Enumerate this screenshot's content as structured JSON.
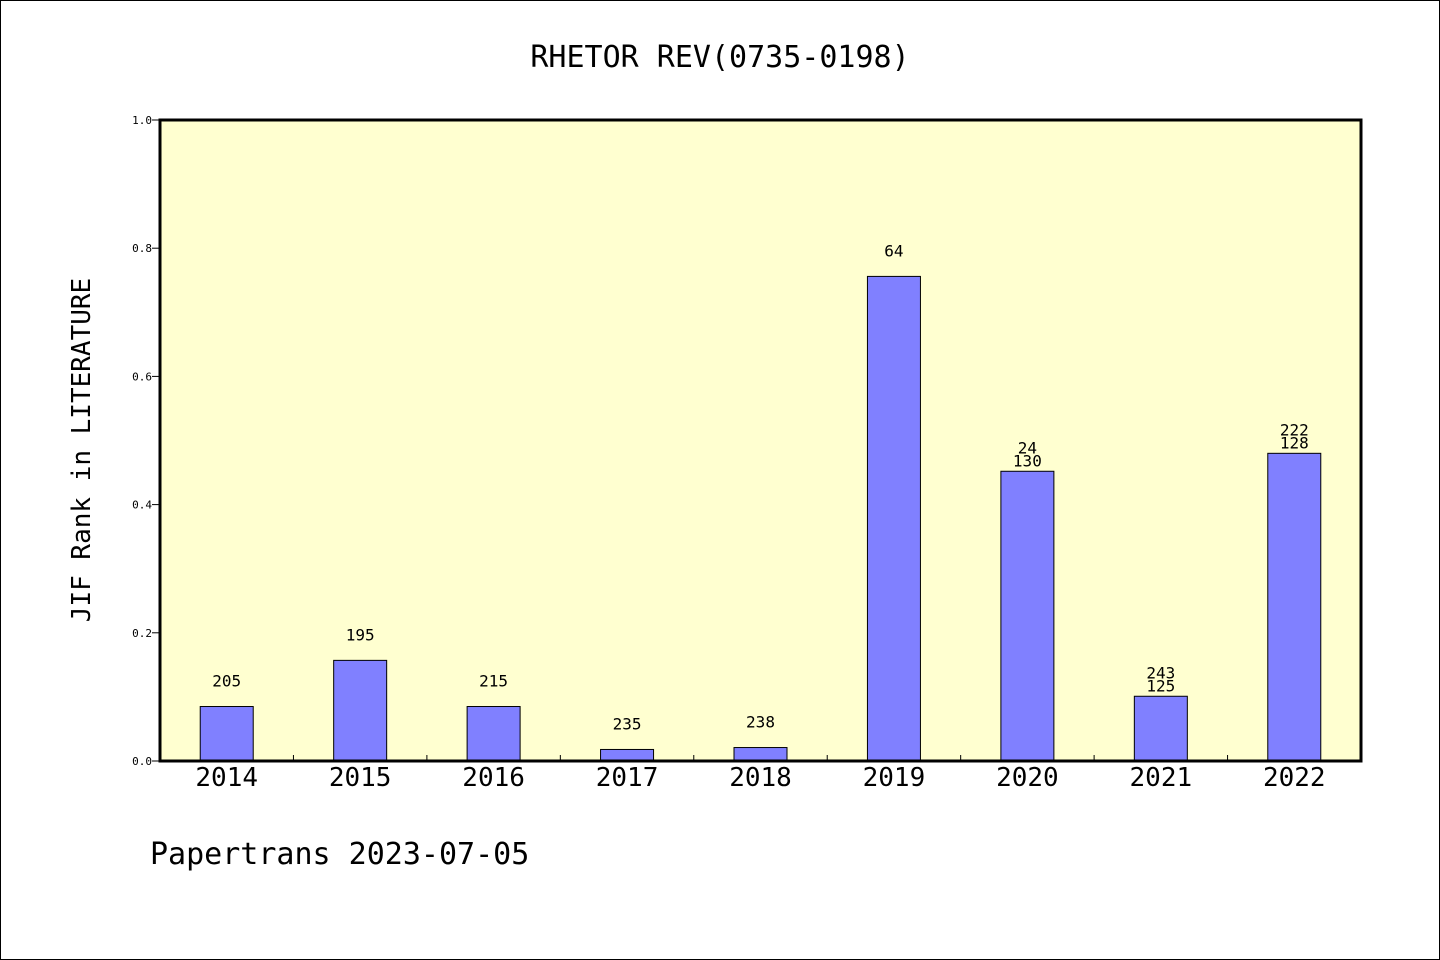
{
  "chart_data": {
    "type": "bar",
    "title": "RHETOR REV(0735-0198)",
    "xlabel": "",
    "ylabel": "JIF Rank in LITERATURE",
    "ylim": [
      0,
      1.0
    ],
    "yticks": [
      "0.0",
      "0.2",
      "0.4",
      "0.6",
      "0.8",
      "1.0"
    ],
    "ytick_values": [
      0.0,
      0.2,
      0.4,
      0.6,
      0.8,
      1.0
    ],
    "categories": [
      "2014",
      "2015",
      "2016",
      "2017",
      "2018",
      "2019",
      "2020",
      "2021",
      "2022"
    ],
    "values": [
      0.085,
      0.157,
      0.085,
      0.018,
      0.021,
      0.756,
      0.452,
      0.101,
      0.48
    ],
    "labels_top": [
      "205",
      "195",
      "215",
      "235",
      "238",
      "64",
      "24",
      "243",
      "222"
    ],
    "labels_bottom": [
      "",
      "",
      "",
      "",
      "",
      "",
      "130",
      "125",
      "128"
    ],
    "bar_color": "#8080ff",
    "plot_background": "#ffffd0",
    "grid": false
  },
  "footer": {
    "source_text": "Papertrans 2023-07-05"
  }
}
